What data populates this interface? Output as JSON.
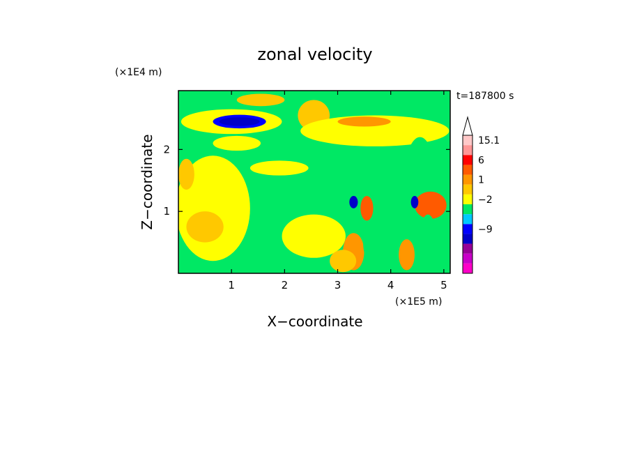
{
  "chart_data": {
    "type": "heatmap",
    "title": "zonal velocity",
    "xlabel": "X−coordinate",
    "ylabel": "Z−coordinate",
    "x_unit": "(×1E5 m)",
    "y_unit": "(×1E4 m)",
    "time_label": "t=187800 s",
    "xlim": [
      0,
      5.12
    ],
    "ylim": [
      0,
      2.95
    ],
    "x_ticks": [
      1,
      2,
      3,
      4,
      5
    ],
    "y_ticks": [
      1,
      2
    ],
    "colorbar": {
      "levels": [
        "",
        "",
        "",
        "",
        "-9",
        "",
        "",
        "-2",
        "",
        "1",
        "",
        "6",
        "",
        "15.1"
      ],
      "colors": [
        "#ff00c8",
        "#c800c8",
        "#960096",
        "#0000c8",
        "#0000ff",
        "#00c8ff",
        "#00e864",
        "#ffff00",
        "#ffc800",
        "#ff9600",
        "#ff5a00",
        "#ff0000",
        "#ff9696",
        "#ffc8c8"
      ],
      "label_values": [
        "15.1",
        "6",
        "1",
        "−2",
        "−9"
      ],
      "extend": "max"
    },
    "field": {
      "background": "#00e864",
      "regions": [
        {
          "x": 0.65,
          "z": 1.05,
          "rx": 0.7,
          "rz": 0.85,
          "value": 0.5
        },
        {
          "x": 1.9,
          "z": 1.7,
          "rx": 0.55,
          "rz": 0.12,
          "value": 0.5
        },
        {
          "x": 1.0,
          "z": 2.45,
          "rx": 0.95,
          "rz": 0.2,
          "value": 0.5
        },
        {
          "x": 2.55,
          "z": 2.55,
          "rx": 0.3,
          "rz": 0.25,
          "value": 2
        },
        {
          "x": 1.55,
          "z": 2.8,
          "rx": 0.45,
          "rz": 0.1,
          "value": 2
        },
        {
          "x": 1.15,
          "z": 2.45,
          "rx": 0.5,
          "rz": 0.11,
          "value": -5
        },
        {
          "x": 1.15,
          "z": 2.45,
          "rx": 0.38,
          "rz": 0.07,
          "value": -7
        },
        {
          "x": 0.5,
          "z": 0.75,
          "rx": 0.35,
          "rz": 0.25,
          "value": 2
        },
        {
          "x": 1.1,
          "z": 2.1,
          "rx": 0.45,
          "rz": 0.12,
          "value": 0.5
        },
        {
          "x": 2.55,
          "z": 0.6,
          "rx": 0.6,
          "rz": 0.35,
          "value": 0.5
        },
        {
          "x": 3.7,
          "z": 2.3,
          "rx": 1.4,
          "rz": 0.25,
          "value": 0.5
        },
        {
          "x": 3.5,
          "z": 2.45,
          "rx": 0.5,
          "rz": 0.08,
          "value": 3
        },
        {
          "x": 3.3,
          "z": 2.8,
          "rx": 0.5,
          "rz": 0.12,
          "value": -1
        },
        {
          "x": 3.4,
          "z": 1.4,
          "rx": 0.35,
          "rz": 0.6,
          "value": -1
        },
        {
          "x": 4.55,
          "z": 1.5,
          "rx": 0.3,
          "rz": 0.7,
          "value": -1
        },
        {
          "x": 3.55,
          "z": 1.05,
          "rx": 0.12,
          "rz": 0.2,
          "value": 4
        },
        {
          "x": 4.75,
          "z": 1.1,
          "rx": 0.3,
          "rz": 0.22,
          "value": 4
        },
        {
          "x": 3.3,
          "z": 1.15,
          "rx": 0.08,
          "rz": 0.1,
          "value": -7
        },
        {
          "x": 4.45,
          "z": 1.15,
          "rx": 0.07,
          "rz": 0.1,
          "value": -7
        },
        {
          "x": 3.3,
          "z": 0.35,
          "rx": 0.2,
          "rz": 0.3,
          "value": 3
        },
        {
          "x": 4.3,
          "z": 0.3,
          "rx": 0.15,
          "rz": 0.25,
          "value": 3
        },
        {
          "x": 3.1,
          "z": 0.2,
          "rx": 0.25,
          "rz": 0.18,
          "value": 1.5
        },
        {
          "x": 3.6,
          "z": 0.5,
          "rx": 0.12,
          "rz": 0.3,
          "value": -1
        },
        {
          "x": 4.7,
          "z": 0.6,
          "rx": 0.15,
          "rz": 0.35,
          "value": -1
        },
        {
          "x": 0.3,
          "z": 0.1,
          "rx": 0.4,
          "rz": 0.08,
          "value": -1
        },
        {
          "x": 0.15,
          "z": 1.6,
          "rx": 0.15,
          "rz": 0.25,
          "value": 2
        }
      ]
    }
  }
}
